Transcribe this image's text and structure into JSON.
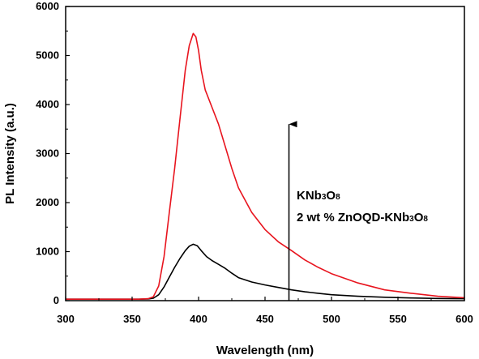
{
  "chart_data": {
    "type": "line",
    "xlabel": "Wavelength  (nm)",
    "ylabel": "PL Intensity (a.u.)",
    "xlim": [
      300,
      600
    ],
    "ylim": [
      0,
      6000
    ],
    "x_ticks": [
      300,
      350,
      400,
      450,
      500,
      550,
      600
    ],
    "y_ticks": [
      0,
      1000,
      2000,
      3000,
      4000,
      5000,
      6000
    ],
    "grid": false,
    "annotations": {
      "arrow": {
        "x": 468,
        "y_start": 0,
        "y_end": 3600
      },
      "text_lines": [
        {
          "base": "KNb",
          "sub1": "3",
          "mid": "O",
          "sub2": "8"
        },
        {
          "base": "2 wt % ZnOQD-KNb",
          "sub1": "3",
          "mid": "O",
          "sub2": "8"
        }
      ]
    },
    "series": [
      {
        "color": "#000000",
        "x": [
          300,
          355,
          362,
          366,
          370,
          374,
          378,
          382,
          386,
          390,
          393,
          396,
          399,
          402,
          406,
          410,
          415,
          420,
          425,
          430,
          440,
          450,
          460,
          470,
          480,
          490,
          500,
          520,
          540,
          560,
          580,
          600
        ],
        "y": [
          30,
          30,
          35,
          50,
          120,
          280,
          480,
          680,
          860,
          1020,
          1110,
          1150,
          1120,
          1020,
          900,
          820,
          740,
          660,
          560,
          470,
          380,
          320,
          270,
          220,
          180,
          150,
          120,
          90,
          70,
          55,
          45,
          40
        ]
      },
      {
        "color": "#e8141e",
        "x": [
          300,
          355,
          362,
          366,
          370,
          374,
          378,
          382,
          386,
          390,
          393,
          396,
          398,
          400,
          402,
          405,
          410,
          415,
          420,
          425,
          430,
          440,
          450,
          460,
          470,
          480,
          490,
          500,
          520,
          540,
          560,
          580,
          600
        ],
        "y": [
          30,
          30,
          40,
          80,
          300,
          900,
          1800,
          2700,
          3700,
          4700,
          5200,
          5450,
          5380,
          5100,
          4700,
          4300,
          3950,
          3600,
          3150,
          2700,
          2300,
          1800,
          1450,
          1200,
          1020,
          830,
          680,
          550,
          360,
          220,
          150,
          90,
          60
        ]
      }
    ]
  }
}
